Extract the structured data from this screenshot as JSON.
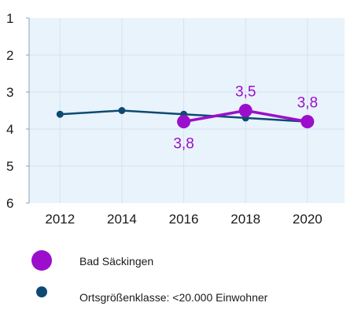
{
  "chart_data": {
    "type": "line",
    "x": [
      2012,
      2014,
      2016,
      2018,
      2020
    ],
    "xticks": [
      "2012",
      "2014",
      "2016",
      "2018",
      "2020"
    ],
    "yticks": [
      "1",
      "2",
      "3",
      "4",
      "5",
      "6"
    ],
    "ylim": [
      1,
      6
    ],
    "y_inverted": true,
    "grid": true,
    "legend_position": "bottom",
    "series": [
      {
        "name": "Ortsgrößenklasse: <20.000 Einwohner",
        "color": "#0d4a73",
        "x": [
          2012,
          2014,
          2016,
          2018,
          2020
        ],
        "values": [
          3.6,
          3.5,
          3.6,
          3.7,
          3.8
        ]
      },
      {
        "name": "Bad Säckingen",
        "color": "#9b0fcc",
        "x": [
          2016,
          2018,
          2020
        ],
        "values": [
          3.8,
          3.5,
          3.8
        ],
        "data_labels": [
          "3,8",
          "3,5",
          "3,8"
        ],
        "data_label_positions": [
          "below",
          "above",
          "above"
        ]
      }
    ]
  },
  "legend": {
    "items": [
      {
        "label": "Bad Säckingen",
        "color": "#9b0fcc"
      },
      {
        "label": "Ortsgrößenklasse: <20.000 Einwohner",
        "color": "#0d4a73"
      }
    ]
  }
}
